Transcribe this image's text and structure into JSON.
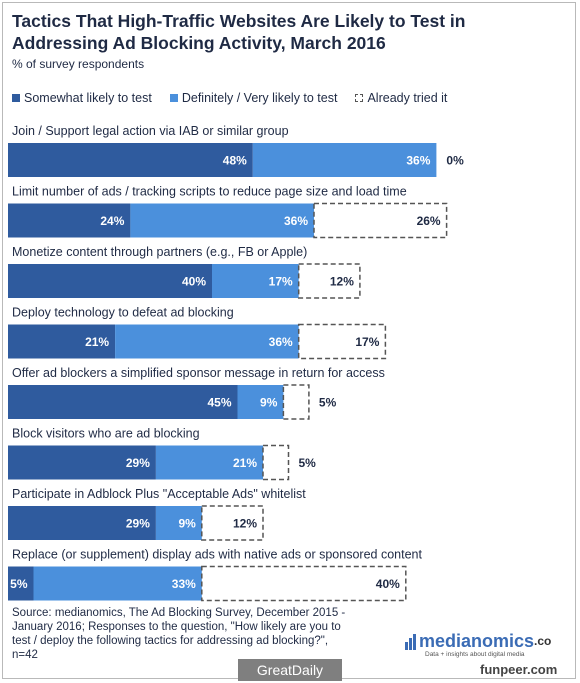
{
  "header": {
    "title": "Tactics That High-Traffic Websites Are Likely to Test in Addressing Ad Blocking Activity, March 2016",
    "subtitle": "% of survey respondents"
  },
  "legend": {
    "somewhat": "Somewhat likely to test",
    "definitely": "Definitely / Very likely to test",
    "tried": "Already tried it"
  },
  "colors": {
    "somewhat": "#2f5b9e",
    "definitely": "#4b90dc",
    "tried_border": "#555555",
    "text": "#1f2a44"
  },
  "chart_data": {
    "type": "bar",
    "orientation": "horizontal-stacked",
    "unit": "%",
    "categories": [
      "Join / Support legal action via IAB or similar group",
      "Limit number of ads / tracking scripts to reduce page size and load time",
      "Monetize content through partners (e.g., FB or Apple)",
      "Deploy technology to defeat ad blocking",
      "Offer ad blockers a simplified sponsor message in return for access",
      "Block visitors who are ad blocking",
      "Participate in Adblock Plus \"Acceptable Ads\" whitelist",
      "Replace (or supplement) display ads with native ads or sponsored content"
    ],
    "series": [
      {
        "name": "Somewhat likely to test",
        "values": [
          48,
          24,
          40,
          21,
          45,
          29,
          29,
          5
        ]
      },
      {
        "name": "Definitely / Very likely to test",
        "values": [
          36,
          36,
          17,
          36,
          9,
          21,
          9,
          33
        ]
      },
      {
        "name": "Already tried it",
        "values": [
          0,
          26,
          12,
          17,
          5,
          5,
          12,
          40
        ]
      }
    ]
  },
  "footer": {
    "source_lines": [
      "Source: medianomics, The Ad Blocking Survey, December 2015 -",
      "January 2016; Responses to the question, \"How likely are you to",
      "test / deploy the following tactics for addressing ad blocking?\",",
      "n=42"
    ],
    "logo_text": "medianomics",
    "logo_suffix": ".co",
    "logo_tagline": "Data + insights about digital media"
  },
  "watermarks": {
    "left": "GreatDaily",
    "right": "funpeer.com"
  }
}
